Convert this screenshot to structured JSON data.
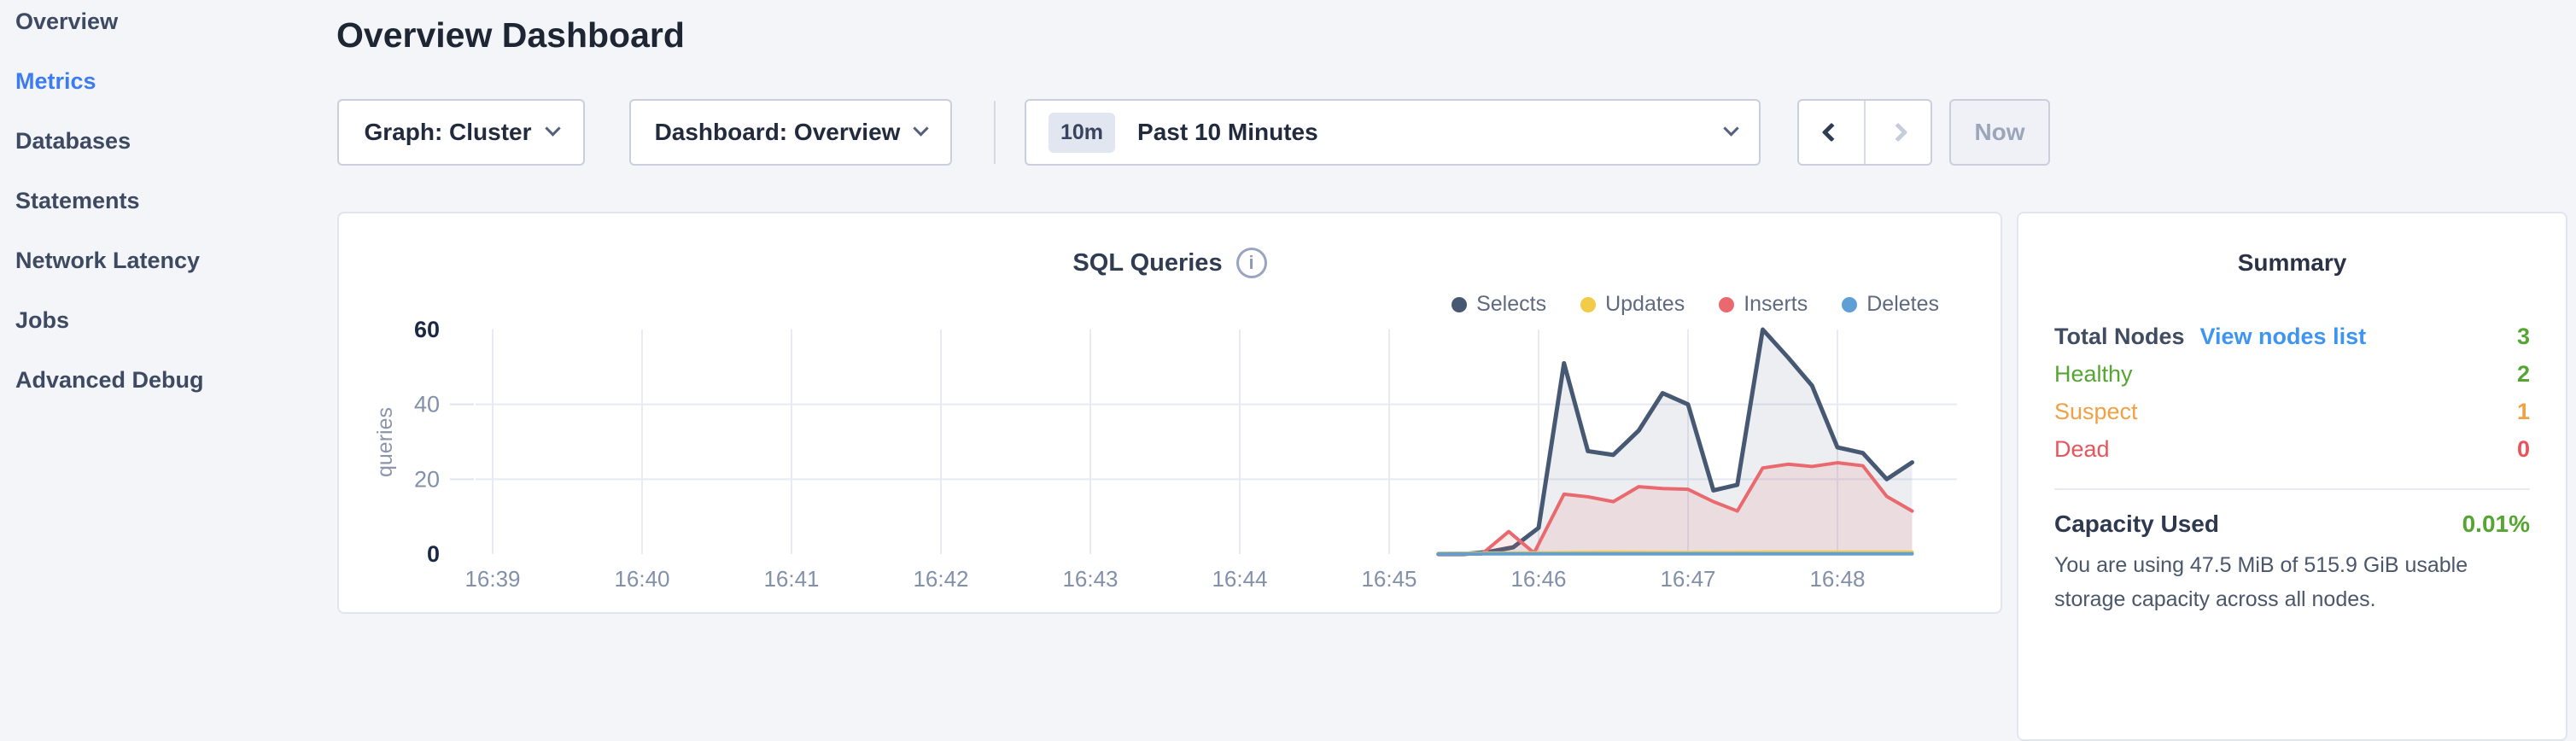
{
  "sidebar": {
    "items": [
      {
        "label": "Overview",
        "active": false
      },
      {
        "label": "Metrics",
        "active": true
      },
      {
        "label": "Databases",
        "active": false
      },
      {
        "label": "Statements",
        "active": false
      },
      {
        "label": "Network Latency",
        "active": false
      },
      {
        "label": "Jobs",
        "active": false
      },
      {
        "label": "Advanced Debug",
        "active": false
      }
    ]
  },
  "header": {
    "title": "Overview Dashboard"
  },
  "controls": {
    "graph_dropdown": "Graph: Cluster",
    "dashboard_dropdown": "Dashboard: Overview",
    "time_window_badge": "10m",
    "time_window_label": "Past 10 Minutes",
    "now_button": "Now"
  },
  "colors": {
    "active_nav_blue": "#3d7bf0",
    "link_blue": "#3d94f2",
    "healthy_green": "#55a532",
    "suspect_orange": "#f0a144",
    "dead_red": "#e8545c",
    "page_background": "#f4f5f9"
  },
  "summary": {
    "title": "Summary",
    "rows": [
      {
        "label": "Total Nodes",
        "link": "View nodes list",
        "value": "3",
        "label_color": "#414c61",
        "value_color": "#55a532",
        "link_color": "#3d94f2"
      },
      {
        "label": "Healthy",
        "value": "2",
        "color": "#55a532"
      },
      {
        "label": "Suspect",
        "value": "1",
        "color": "#f0a144"
      },
      {
        "label": "Dead",
        "value": "0",
        "color": "#e8545c"
      }
    ],
    "capacity_label": "Capacity Used",
    "capacity_value": "0.01%",
    "capacity_value_color": "#55a532",
    "capacity_description": "You are using 47.5 MiB of 515.9 GiB usable storage capacity across all nodes."
  },
  "chart_data": {
    "type": "area",
    "title": "SQL Queries",
    "ylabel": "queries",
    "ylim": [
      0,
      60
    ],
    "grid": true,
    "legend_position": "top-right",
    "y_ticks": [
      {
        "v": 0,
        "bold": true
      },
      {
        "v": 20,
        "bold": false
      },
      {
        "v": 40,
        "bold": false
      },
      {
        "v": 60,
        "bold": true
      }
    ],
    "x_ticks": [
      "16:39",
      "16:40",
      "16:41",
      "16:42",
      "16:43",
      "16:44",
      "16:45",
      "16:46",
      "16:47",
      "16:48"
    ],
    "x_unit_minutes_from_first_tick": true,
    "draw_order": [
      0,
      2,
      1,
      3
    ],
    "series": [
      {
        "name": "Selects",
        "color": "#475872",
        "fill": "rgba(71,88,114,0.10)",
        "points": [
          [
            6.33,
            0
          ],
          [
            6.5,
            0
          ],
          [
            6.67,
            0.6
          ],
          [
            6.83,
            1.8
          ],
          [
            7.0,
            7
          ],
          [
            7.17,
            51
          ],
          [
            7.33,
            27.5
          ],
          [
            7.5,
            26.5
          ],
          [
            7.67,
            33
          ],
          [
            7.83,
            43
          ],
          [
            8.0,
            40
          ],
          [
            8.17,
            17
          ],
          [
            8.33,
            18.5
          ],
          [
            8.5,
            60
          ],
          [
            8.67,
            52.5
          ],
          [
            8.83,
            45
          ],
          [
            9.0,
            28.5
          ],
          [
            9.17,
            27
          ],
          [
            9.33,
            20
          ],
          [
            9.5,
            24.5
          ]
        ]
      },
      {
        "name": "Updates",
        "color": "#f2cb49",
        "fill": "rgba(242,203,73,0.18)",
        "points": [
          [
            6.33,
            0.2
          ],
          [
            7.0,
            0.3
          ],
          [
            7.5,
            0.5
          ],
          [
            8.0,
            0.4
          ],
          [
            8.5,
            0.5
          ],
          [
            9.0,
            0.5
          ],
          [
            9.5,
            0.5
          ]
        ]
      },
      {
        "name": "Inserts",
        "color": "#e9696e",
        "fill": "rgba(233,105,110,0.13)",
        "points": [
          [
            6.33,
            0
          ],
          [
            6.5,
            0
          ],
          [
            6.62,
            0
          ],
          [
            6.8,
            6
          ],
          [
            6.97,
            0.3
          ],
          [
            7.17,
            16
          ],
          [
            7.33,
            15.3
          ],
          [
            7.5,
            14
          ],
          [
            7.67,
            18
          ],
          [
            7.83,
            17.5
          ],
          [
            8.0,
            17.3
          ],
          [
            8.17,
            14
          ],
          [
            8.33,
            11.5
          ],
          [
            8.5,
            23
          ],
          [
            8.67,
            24
          ],
          [
            8.83,
            23.4
          ],
          [
            9.0,
            24.4
          ],
          [
            9.17,
            23.6
          ],
          [
            9.33,
            15.4
          ],
          [
            9.5,
            11.5
          ]
        ]
      },
      {
        "name": "Deletes",
        "color": "#5ea0d6",
        "fill": "none",
        "points": [
          [
            6.33,
            0.05
          ],
          [
            9.5,
            0.05
          ]
        ]
      }
    ]
  }
}
